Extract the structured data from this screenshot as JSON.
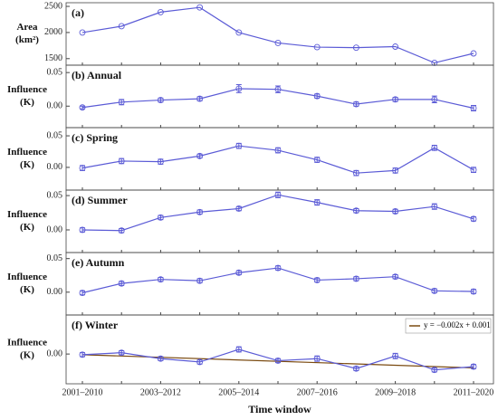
{
  "chart_data": [
    {
      "type": "line",
      "title": "(a)",
      "ylabel": [
        "Area",
        "(km²)"
      ],
      "color": "#5b5bd6",
      "marker": "open-circle",
      "ylim": [
        1375,
        2570
      ],
      "yticks": [
        1500,
        2000,
        2500
      ],
      "values": [
        2000,
        2120,
        2390,
        2480,
        2000,
        1800,
        1720,
        1710,
        1730,
        1420,
        1600
      ]
    },
    {
      "type": "line",
      "title": "(b) Annual",
      "ylabel": [
        "Influence",
        "(K)"
      ],
      "color": "#5b5bd6",
      "marker": "open-circle",
      "ylim": [
        -0.032,
        0.061
      ],
      "yticks": [
        {
          "value": 0,
          "label": "0.00"
        },
        {
          "value": 0.05,
          "label": "0.05"
        }
      ],
      "values": [
        -0.002,
        0.006,
        0.009,
        0.011,
        0.026,
        0.025,
        0.015,
        0.003,
        0.01,
        0.01,
        -0.003
      ],
      "errors": [
        0.002,
        0.004,
        0.003,
        0.003,
        0.006,
        0.005,
        0.003,
        0.003,
        0.003,
        0.005,
        0.004
      ]
    },
    {
      "type": "line",
      "title": "(c) Spring",
      "ylabel": [
        "Influence",
        "(K)"
      ],
      "color": "#5b5bd6",
      "marker": "open-circle",
      "ylim": [
        -0.036,
        0.063
      ],
      "yticks": [
        {
          "value": 0,
          "label": "0.00"
        },
        {
          "value": 0.05,
          "label": "0.05"
        }
      ],
      "values": [
        -0.001,
        0.01,
        0.009,
        0.018,
        0.034,
        0.027,
        0.012,
        -0.009,
        -0.005,
        0.031,
        -0.004
      ],
      "errors": [
        0.004,
        0.004,
        0.004,
        0.003,
        0.004,
        0.004,
        0.004,
        0.004,
        0.004,
        0.004,
        0.004
      ]
    },
    {
      "type": "line",
      "title": "(d) Summer",
      "ylabel": [
        "Influence",
        "(K)"
      ],
      "color": "#5b5bd6",
      "marker": "open-circle",
      "ylim": [
        -0.033,
        0.058
      ],
      "yticks": [
        {
          "value": 0,
          "label": "0.00"
        },
        {
          "value": 0.05,
          "label": "0.05"
        }
      ],
      "values": [
        0.0,
        -0.001,
        0.018,
        0.026,
        0.031,
        0.051,
        0.04,
        0.028,
        0.027,
        0.034,
        0.016
      ],
      "errors": [
        0.003,
        0.003,
        0.003,
        0.003,
        0.003,
        0.004,
        0.004,
        0.003,
        0.003,
        0.004,
        0.003
      ]
    },
    {
      "type": "line",
      "title": "(e) Autumn",
      "ylabel": [
        "Influence",
        "(K)"
      ],
      "color": "#5b5bd6",
      "marker": "open-circle",
      "ylim": [
        -0.034,
        0.059
      ],
      "yticks": [
        {
          "value": 0,
          "label": "0.00"
        },
        {
          "value": 0.05,
          "label": "0.05"
        }
      ],
      "values": [
        -0.001,
        0.013,
        0.019,
        0.017,
        0.029,
        0.036,
        0.018,
        0.02,
        0.023,
        0.002,
        0.001
      ],
      "errors": [
        0.003,
        0.003,
        0.003,
        0.003,
        0.003,
        0.003,
        0.003,
        0.003,
        0.003,
        0.003,
        0.003
      ]
    },
    {
      "type": "line",
      "title": "(f) Winter",
      "ylabel": [
        "Influence",
        "(K)"
      ],
      "color": "#5b5bd6",
      "marker": "open-circle",
      "ylim": [
        -0.045,
        0.059
      ],
      "yticks": [
        {
          "value": 0,
          "label": "0.00"
        }
      ],
      "values": [
        -0.001,
        0.002,
        -0.007,
        -0.012,
        0.007,
        -0.01,
        -0.007,
        -0.022,
        -0.003,
        -0.024,
        -0.019
      ],
      "errors": [
        0.003,
        0.003,
        0.003,
        0.003,
        0.004,
        0.003,
        0.004,
        0.003,
        0.004,
        0.003,
        0.003
      ],
      "categories": [
        "2001–2010",
        null,
        "2003–2012",
        null,
        "2005–2014",
        null,
        "2007–2016",
        null,
        "2009–2018",
        null,
        "2011–2020"
      ],
      "xlabel": "Time window",
      "trend": {
        "label": "y = −0.002x + 0.001",
        "slope": -0.002,
        "intercept": 0.001,
        "color": "#7a4a10"
      },
      "legend": "upper right"
    }
  ]
}
